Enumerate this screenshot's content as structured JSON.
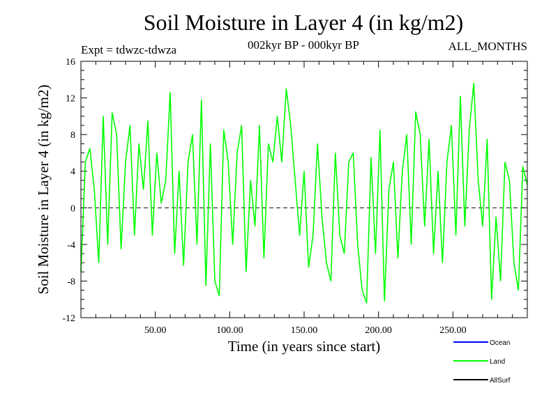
{
  "title": "Soil Moisture in Layer 4 (in kg/m2)",
  "subtitle": "002kyr BP - 000kyr BP",
  "expt_label": "Expt = tdwzc-tdwza",
  "months_label": "ALL_MONTHS",
  "colors": {
    "ocean": "#0000ff",
    "land": "#00ff00",
    "allsurf": "#000000"
  },
  "chart_data": {
    "type": "line",
    "xlabel": "Time (in years since start)",
    "ylabel": "Soil Moisture in Layer 4 (in kg/m2)",
    "xlim": [
      0,
      300
    ],
    "ylim": [
      -12,
      16
    ],
    "xticks": [
      50,
      100,
      150,
      200,
      250
    ],
    "xtick_labels": [
      "50.00",
      "100.00",
      "150.00",
      "200.00",
      "250.00"
    ],
    "yticks": [
      -12,
      -8,
      -4,
      0,
      4,
      8,
      12,
      16
    ],
    "ytick_labels": [
      "-12",
      "-8",
      "-4",
      "0",
      "4",
      "8",
      "12",
      "16"
    ],
    "reference_line": 0,
    "legend": [
      "Ocean",
      "Land",
      "AllSurf"
    ],
    "legend_position": "bottom-right",
    "series": [
      {
        "name": "Land",
        "x": [
          0,
          3,
          6,
          9,
          12,
          15,
          18,
          21,
          24,
          27,
          30,
          33,
          36,
          39,
          42,
          45,
          48,
          51,
          54,
          57,
          60,
          63,
          66,
          69,
          72,
          75,
          78,
          81,
          84,
          87,
          90,
          93,
          96,
          99,
          102,
          105,
          108,
          111,
          114,
          117,
          120,
          123,
          126,
          129,
          132,
          135,
          138,
          141,
          144,
          147,
          150,
          153,
          156,
          159,
          162,
          165,
          168,
          171,
          174,
          177,
          180,
          183,
          186,
          189,
          192,
          195,
          198,
          201,
          204,
          207,
          210,
          213,
          216,
          219,
          222,
          225,
          228,
          231,
          234,
          237,
          240,
          243,
          246,
          249,
          252,
          255,
          258,
          261,
          264,
          267,
          270,
          273,
          276,
          279,
          282,
          285,
          288,
          291,
          294,
          297,
          300
        ],
        "y": [
          -7.0,
          5.0,
          6.5,
          2.0,
          -6.0,
          10.0,
          -4.0,
          10.4,
          8.0,
          -4.5,
          5.0,
          9.0,
          -3.0,
          7.0,
          2.0,
          9.5,
          -3.0,
          6.0,
          0.5,
          3.0,
          12.6,
          -5.0,
          4.0,
          -6.3,
          5.0,
          8.0,
          -4.0,
          11.8,
          -8.5,
          7.0,
          -8.0,
          -9.6,
          8.5,
          5.0,
          -4.0,
          6.0,
          9.0,
          -7.0,
          3.0,
          -2.0,
          9.0,
          -5.5,
          7.0,
          5.0,
          10.0,
          5.0,
          13.0,
          9.0,
          3.0,
          -3.0,
          4.0,
          -6.5,
          -3.0,
          7.0,
          -1.0,
          -6.0,
          -8.0,
          6.0,
          -3.0,
          -5.0,
          5.0,
          6.0,
          -4.0,
          -9.0,
          -10.4,
          5.5,
          -5.0,
          8.5,
          -10.2,
          2.0,
          5.0,
          -5.5,
          4.0,
          8.0,
          -4.0,
          10.5,
          8.0,
          -2.0,
          7.5,
          -5.0,
          4.0,
          -6.0,
          5.0,
          9.0,
          -3.0,
          12.2,
          -2.0,
          8.5,
          13.6,
          3.0,
          -2.0,
          7.5,
          -10.0,
          -1.0,
          -8.0,
          5.0,
          3.0,
          -6.0,
          -9.0,
          4.5,
          2.5
        ]
      }
    ]
  }
}
